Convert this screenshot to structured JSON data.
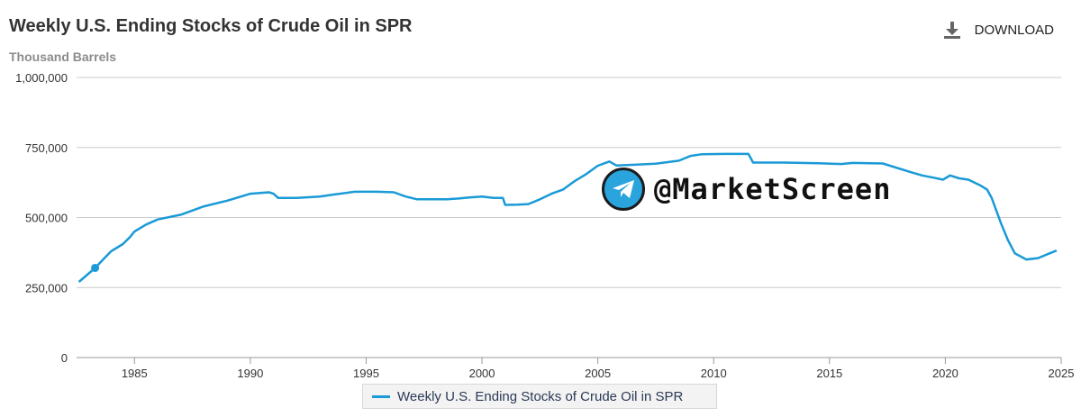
{
  "header": {
    "title": "Weekly U.S. Ending Stocks of Crude Oil in SPR",
    "subtitle": "Thousand Barrels",
    "download_label": "DOWNLOAD"
  },
  "watermark": {
    "text": "@MarketScreen",
    "icon": "telegram-icon"
  },
  "colors": {
    "series": "#1a9ad6",
    "grid": "#cccccc",
    "axis_text": "#333333"
  },
  "chart_data": {
    "type": "line",
    "title": "Weekly U.S. Ending Stocks of Crude Oil in SPR",
    "ylabel": "Thousand Barrels",
    "xlabel": "",
    "xlim": [
      1982.5,
      2025
    ],
    "ylim": [
      0,
      1000000
    ],
    "x_ticks": [
      1985,
      1990,
      1995,
      2000,
      2005,
      2010,
      2015,
      2020,
      2025
    ],
    "x_tick_labels": [
      "1985",
      "1990",
      "1995",
      "2000",
      "2005",
      "2010",
      "2015",
      "2020",
      "2025"
    ],
    "y_ticks": [
      0,
      250000,
      500000,
      750000,
      1000000
    ],
    "y_tick_labels": [
      "0",
      "250,000",
      "500,000",
      "750,000",
      "1,000,000"
    ],
    "legend": "bottom-center",
    "marker": {
      "x": 1983.3,
      "y": 320000
    },
    "series": [
      {
        "name": "Weekly U.S. Ending Stocks of Crude Oil in SPR",
        "points": [
          [
            1982.6,
            270000
          ],
          [
            1983.3,
            320000
          ],
          [
            1983.7,
            355000
          ],
          [
            1984.0,
            380000
          ],
          [
            1984.5,
            405000
          ],
          [
            1984.8,
            430000
          ],
          [
            1985.0,
            450000
          ],
          [
            1985.5,
            475000
          ],
          [
            1986.0,
            493000
          ],
          [
            1987.0,
            510000
          ],
          [
            1988.0,
            540000
          ],
          [
            1989.0,
            560000
          ],
          [
            1990.0,
            585000
          ],
          [
            1990.8,
            590000
          ],
          [
            1991.0,
            585000
          ],
          [
            1991.2,
            570000
          ],
          [
            1992.0,
            570000
          ],
          [
            1993.0,
            575000
          ],
          [
            1993.6,
            582000
          ],
          [
            1994.5,
            592000
          ],
          [
            1995.5,
            592000
          ],
          [
            1996.2,
            590000
          ],
          [
            1996.7,
            575000
          ],
          [
            1997.2,
            565000
          ],
          [
            1998.5,
            565000
          ],
          [
            1999.0,
            568000
          ],
          [
            1999.5,
            572000
          ],
          [
            2000.0,
            575000
          ],
          [
            2000.5,
            570000
          ],
          [
            2000.9,
            570000
          ],
          [
            2001.0,
            545000
          ],
          [
            2001.5,
            546000
          ],
          [
            2002.0,
            548000
          ],
          [
            2002.5,
            565000
          ],
          [
            2003.0,
            585000
          ],
          [
            2003.5,
            600000
          ],
          [
            2004.0,
            630000
          ],
          [
            2004.5,
            655000
          ],
          [
            2005.0,
            685000
          ],
          [
            2005.5,
            700000
          ],
          [
            2005.8,
            686000
          ],
          [
            2006.5,
            688000
          ],
          [
            2007.5,
            692000
          ],
          [
            2008.5,
            703000
          ],
          [
            2009.0,
            720000
          ],
          [
            2009.5,
            726000
          ],
          [
            2010.5,
            727000
          ],
          [
            2011.5,
            727000
          ],
          [
            2011.7,
            696000
          ],
          [
            2013.0,
            696000
          ],
          [
            2014.5,
            694000
          ],
          [
            2015.5,
            691000
          ],
          [
            2016.0,
            695000
          ],
          [
            2017.3,
            693000
          ],
          [
            2017.8,
            680000
          ],
          [
            2018.5,
            662000
          ],
          [
            2019.0,
            650000
          ],
          [
            2019.5,
            642000
          ],
          [
            2019.9,
            635000
          ],
          [
            2020.2,
            650000
          ],
          [
            2020.6,
            640000
          ],
          [
            2021.0,
            635000
          ],
          [
            2021.5,
            615000
          ],
          [
            2021.8,
            600000
          ],
          [
            2022.0,
            570000
          ],
          [
            2022.4,
            480000
          ],
          [
            2022.7,
            420000
          ],
          [
            2023.0,
            372000
          ],
          [
            2023.5,
            350000
          ],
          [
            2024.0,
            355000
          ],
          [
            2024.5,
            372000
          ],
          [
            2024.8,
            382000
          ]
        ]
      }
    ]
  }
}
